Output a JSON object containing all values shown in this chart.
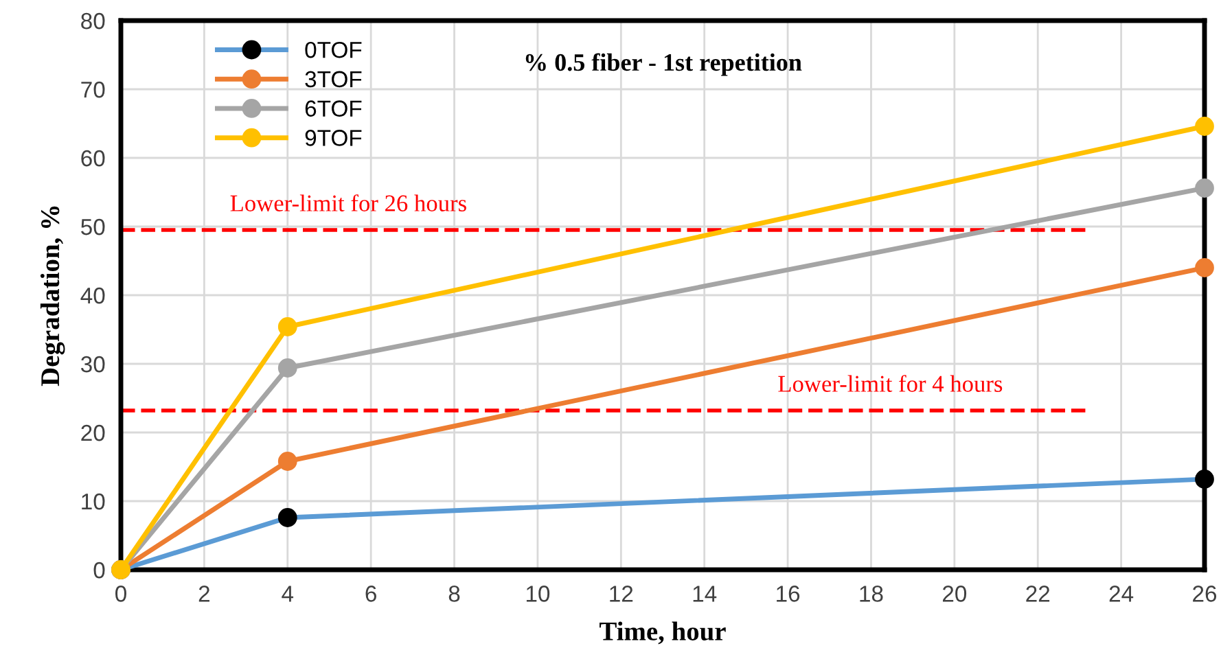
{
  "chart_data": {
    "type": "line",
    "title": "% 0.5 fiber - 1st repetition",
    "xlabel": "Time, hour",
    "ylabel": "Degradation, %",
    "x": [
      0,
      4,
      26
    ],
    "series": [
      {
        "name": "0TOF",
        "color": "#5b9bd5",
        "colors": [
          "#000000",
          "#000000",
          "#000000"
        ],
        "values": [
          0,
          7.6,
          13.2
        ]
      },
      {
        "name": "3TOF",
        "color": "#ed7d31",
        "values": [
          0,
          15.8,
          44
        ]
      },
      {
        "name": "6TOF",
        "color": "#a5a5a5",
        "values": [
          0,
          29.4,
          55.6
        ]
      },
      {
        "name": "9TOF",
        "color": "#ffc000",
        "values": [
          0,
          35.4,
          64.6
        ]
      }
    ],
    "xlim": [
      0,
      26
    ],
    "xticks": [
      0,
      2,
      4,
      6,
      8,
      10,
      12,
      14,
      16,
      18,
      20,
      22,
      24,
      26
    ],
    "ylim": [
      0,
      80
    ],
    "yticks": [
      0,
      10,
      20,
      30,
      40,
      50,
      60,
      70,
      80
    ],
    "ref_lines": [
      {
        "axis": "y",
        "value": 49.5,
        "label": "Lower-limit for 26 hours",
        "color": "#ff0000",
        "line_style": "dashed"
      },
      {
        "axis": "y",
        "value": 23.2,
        "label": "Lower-limit for 4 hours",
        "color": "#ff0000",
        "line_style": "dashed"
      }
    ],
    "grid": true,
    "legend": "top left",
    "marker": "circle",
    "line_style": "solid"
  }
}
